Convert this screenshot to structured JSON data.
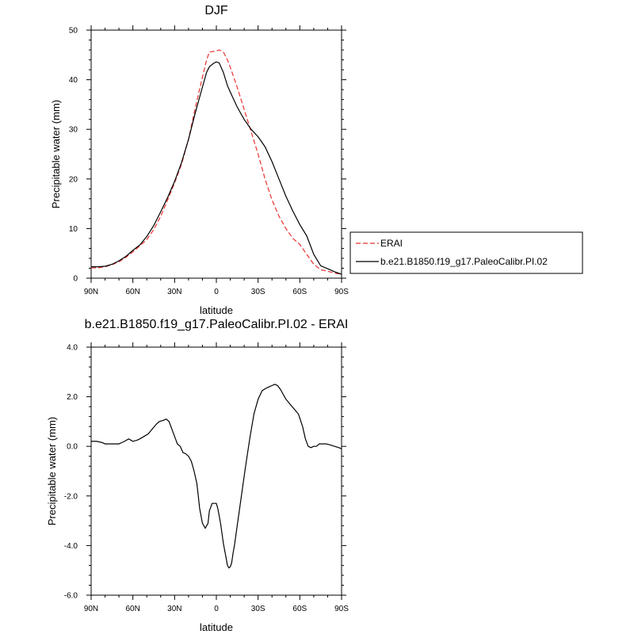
{
  "chart_data": [
    {
      "type": "line",
      "title": "DJF",
      "xlabel": "latitude",
      "ylabel": "Precipitable water (mm)",
      "x_ticks": [
        "90N",
        "60N",
        "30N",
        "0",
        "30S",
        "60S",
        "90S"
      ],
      "x_tick_values": [
        90,
        60,
        30,
        0,
        -30,
        -60,
        -90
      ],
      "y_ticks": [
        "0",
        "10",
        "20",
        "30",
        "40",
        "50"
      ],
      "y_tick_values": [
        0,
        10,
        20,
        30,
        40,
        50
      ],
      "xlim": [
        90,
        -90
      ],
      "ylim": [
        0,
        50
      ],
      "legend_position": "right",
      "series": [
        {
          "name": "ERAI",
          "color": "#e8312f",
          "dash": "dashed",
          "x": [
            90,
            85,
            80,
            75,
            70,
            65,
            60,
            55,
            50,
            45,
            40,
            35,
            30,
            25,
            20,
            15,
            10,
            7,
            5,
            2,
            0,
            -2,
            -5,
            -8,
            -10,
            -15,
            -20,
            -25,
            -30,
            -35,
            -40,
            -45,
            -50,
            -55,
            -60,
            -65,
            -70,
            -75,
            -80,
            -85,
            -90
          ],
          "y": [
            2.1,
            2.1,
            2.3,
            2.7,
            3.3,
            4.2,
            5.3,
            6.5,
            7.8,
            9.8,
            12.5,
            15.8,
            19.2,
            23.0,
            28.0,
            34.5,
            40.5,
            44.0,
            45.6,
            45.7,
            45.8,
            46.0,
            45.6,
            44.0,
            42.5,
            38.5,
            34.0,
            29.5,
            25.0,
            20.0,
            15.8,
            12.5,
            10.0,
            8.0,
            6.8,
            4.8,
            2.8,
            1.7,
            1.4,
            1.0,
            0.8
          ]
        },
        {
          "name": "b.e21.B1850.f19_g17.PaleoCalibr.PI.02",
          "color": "#000000",
          "dash": "solid",
          "x": [
            90,
            85,
            80,
            75,
            70,
            65,
            60,
            55,
            50,
            45,
            40,
            35,
            30,
            25,
            20,
            15,
            10,
            7,
            5,
            2,
            0,
            -2,
            -5,
            -8,
            -10,
            -15,
            -20,
            -25,
            -30,
            -35,
            -40,
            -45,
            -50,
            -55,
            -60,
            -65,
            -70,
            -75,
            -80,
            -85,
            -90
          ],
          "y": [
            2.3,
            2.3,
            2.4,
            2.8,
            3.5,
            4.4,
            5.6,
            6.7,
            8.4,
            10.6,
            13.4,
            16.3,
            19.5,
            23.3,
            28.0,
            33.5,
            38.5,
            41.5,
            42.6,
            43.3,
            43.6,
            43.4,
            41.5,
            38.8,
            37.5,
            34.5,
            32.0,
            30.0,
            28.5,
            26.5,
            23.5,
            20.0,
            16.5,
            13.5,
            10.8,
            8.5,
            4.8,
            2.5,
            1.9,
            1.3,
            0.8
          ]
        }
      ]
    },
    {
      "type": "line",
      "title": "b.e21.B1850.f19_g17.PaleoCalibr.PI.02 - ERAI",
      "xlabel": "latitude",
      "ylabel": "Precipitable water (mm)",
      "x_ticks": [
        "90N",
        "60N",
        "30N",
        "0",
        "30S",
        "60S",
        "90S"
      ],
      "x_tick_values": [
        90,
        60,
        30,
        0,
        -30,
        -60,
        -90
      ],
      "y_ticks": [
        "-6.0",
        "-4.0",
        "-2.0",
        "0.0",
        "2.0",
        "4.0"
      ],
      "y_tick_values": [
        -6,
        -4,
        -2,
        0,
        2,
        4
      ],
      "xlim": [
        90,
        -90
      ],
      "ylim": [
        -6,
        4
      ],
      "series": [
        {
          "color": "#000000",
          "dash": "solid",
          "x": [
            90,
            86,
            82,
            80,
            77,
            73,
            70,
            68,
            66,
            63,
            60,
            57,
            55,
            52,
            49,
            46,
            43,
            41,
            38,
            36,
            34,
            32,
            30,
            28,
            26,
            24,
            22,
            20,
            18,
            16,
            14,
            13,
            12,
            10,
            8,
            6,
            5,
            3,
            1,
            0,
            -1,
            -3,
            -5,
            -7,
            -8,
            -9,
            -10,
            -11,
            -12,
            -13,
            -15,
            -18,
            -21,
            -24,
            -27,
            -30,
            -33,
            -36,
            -38,
            -40,
            -42,
            -44,
            -46,
            -48,
            -50,
            -53,
            -56,
            -59,
            -62,
            -64,
            -66,
            -68,
            -70,
            -72,
            -74,
            -76,
            -79,
            -82,
            -85,
            -88,
            -90
          ],
          "y": [
            0.2,
            0.2,
            0.15,
            0.1,
            0.1,
            0.1,
            0.1,
            0.15,
            0.2,
            0.3,
            0.2,
            0.25,
            0.3,
            0.4,
            0.5,
            0.7,
            0.9,
            1.0,
            1.05,
            1.1,
            1.0,
            0.7,
            0.4,
            0.1,
            0.0,
            -0.25,
            -0.3,
            -0.4,
            -0.6,
            -1.0,
            -1.5,
            -2.0,
            -2.5,
            -3.1,
            -3.3,
            -3.1,
            -2.6,
            -2.3,
            -2.3,
            -2.3,
            -2.5,
            -3.1,
            -3.9,
            -4.5,
            -4.8,
            -4.9,
            -4.85,
            -4.7,
            -4.3,
            -4.0,
            -3.2,
            -2.0,
            -0.8,
            0.3,
            1.3,
            1.9,
            2.25,
            2.35,
            2.4,
            2.45,
            2.5,
            2.45,
            2.3,
            2.1,
            1.9,
            1.7,
            1.5,
            1.3,
            0.8,
            0.3,
            0.0,
            -0.05,
            0.0,
            0.0,
            0.1,
            0.1,
            0.1,
            0.05,
            0.0,
            -0.05,
            -0.1
          ]
        }
      ]
    }
  ]
}
